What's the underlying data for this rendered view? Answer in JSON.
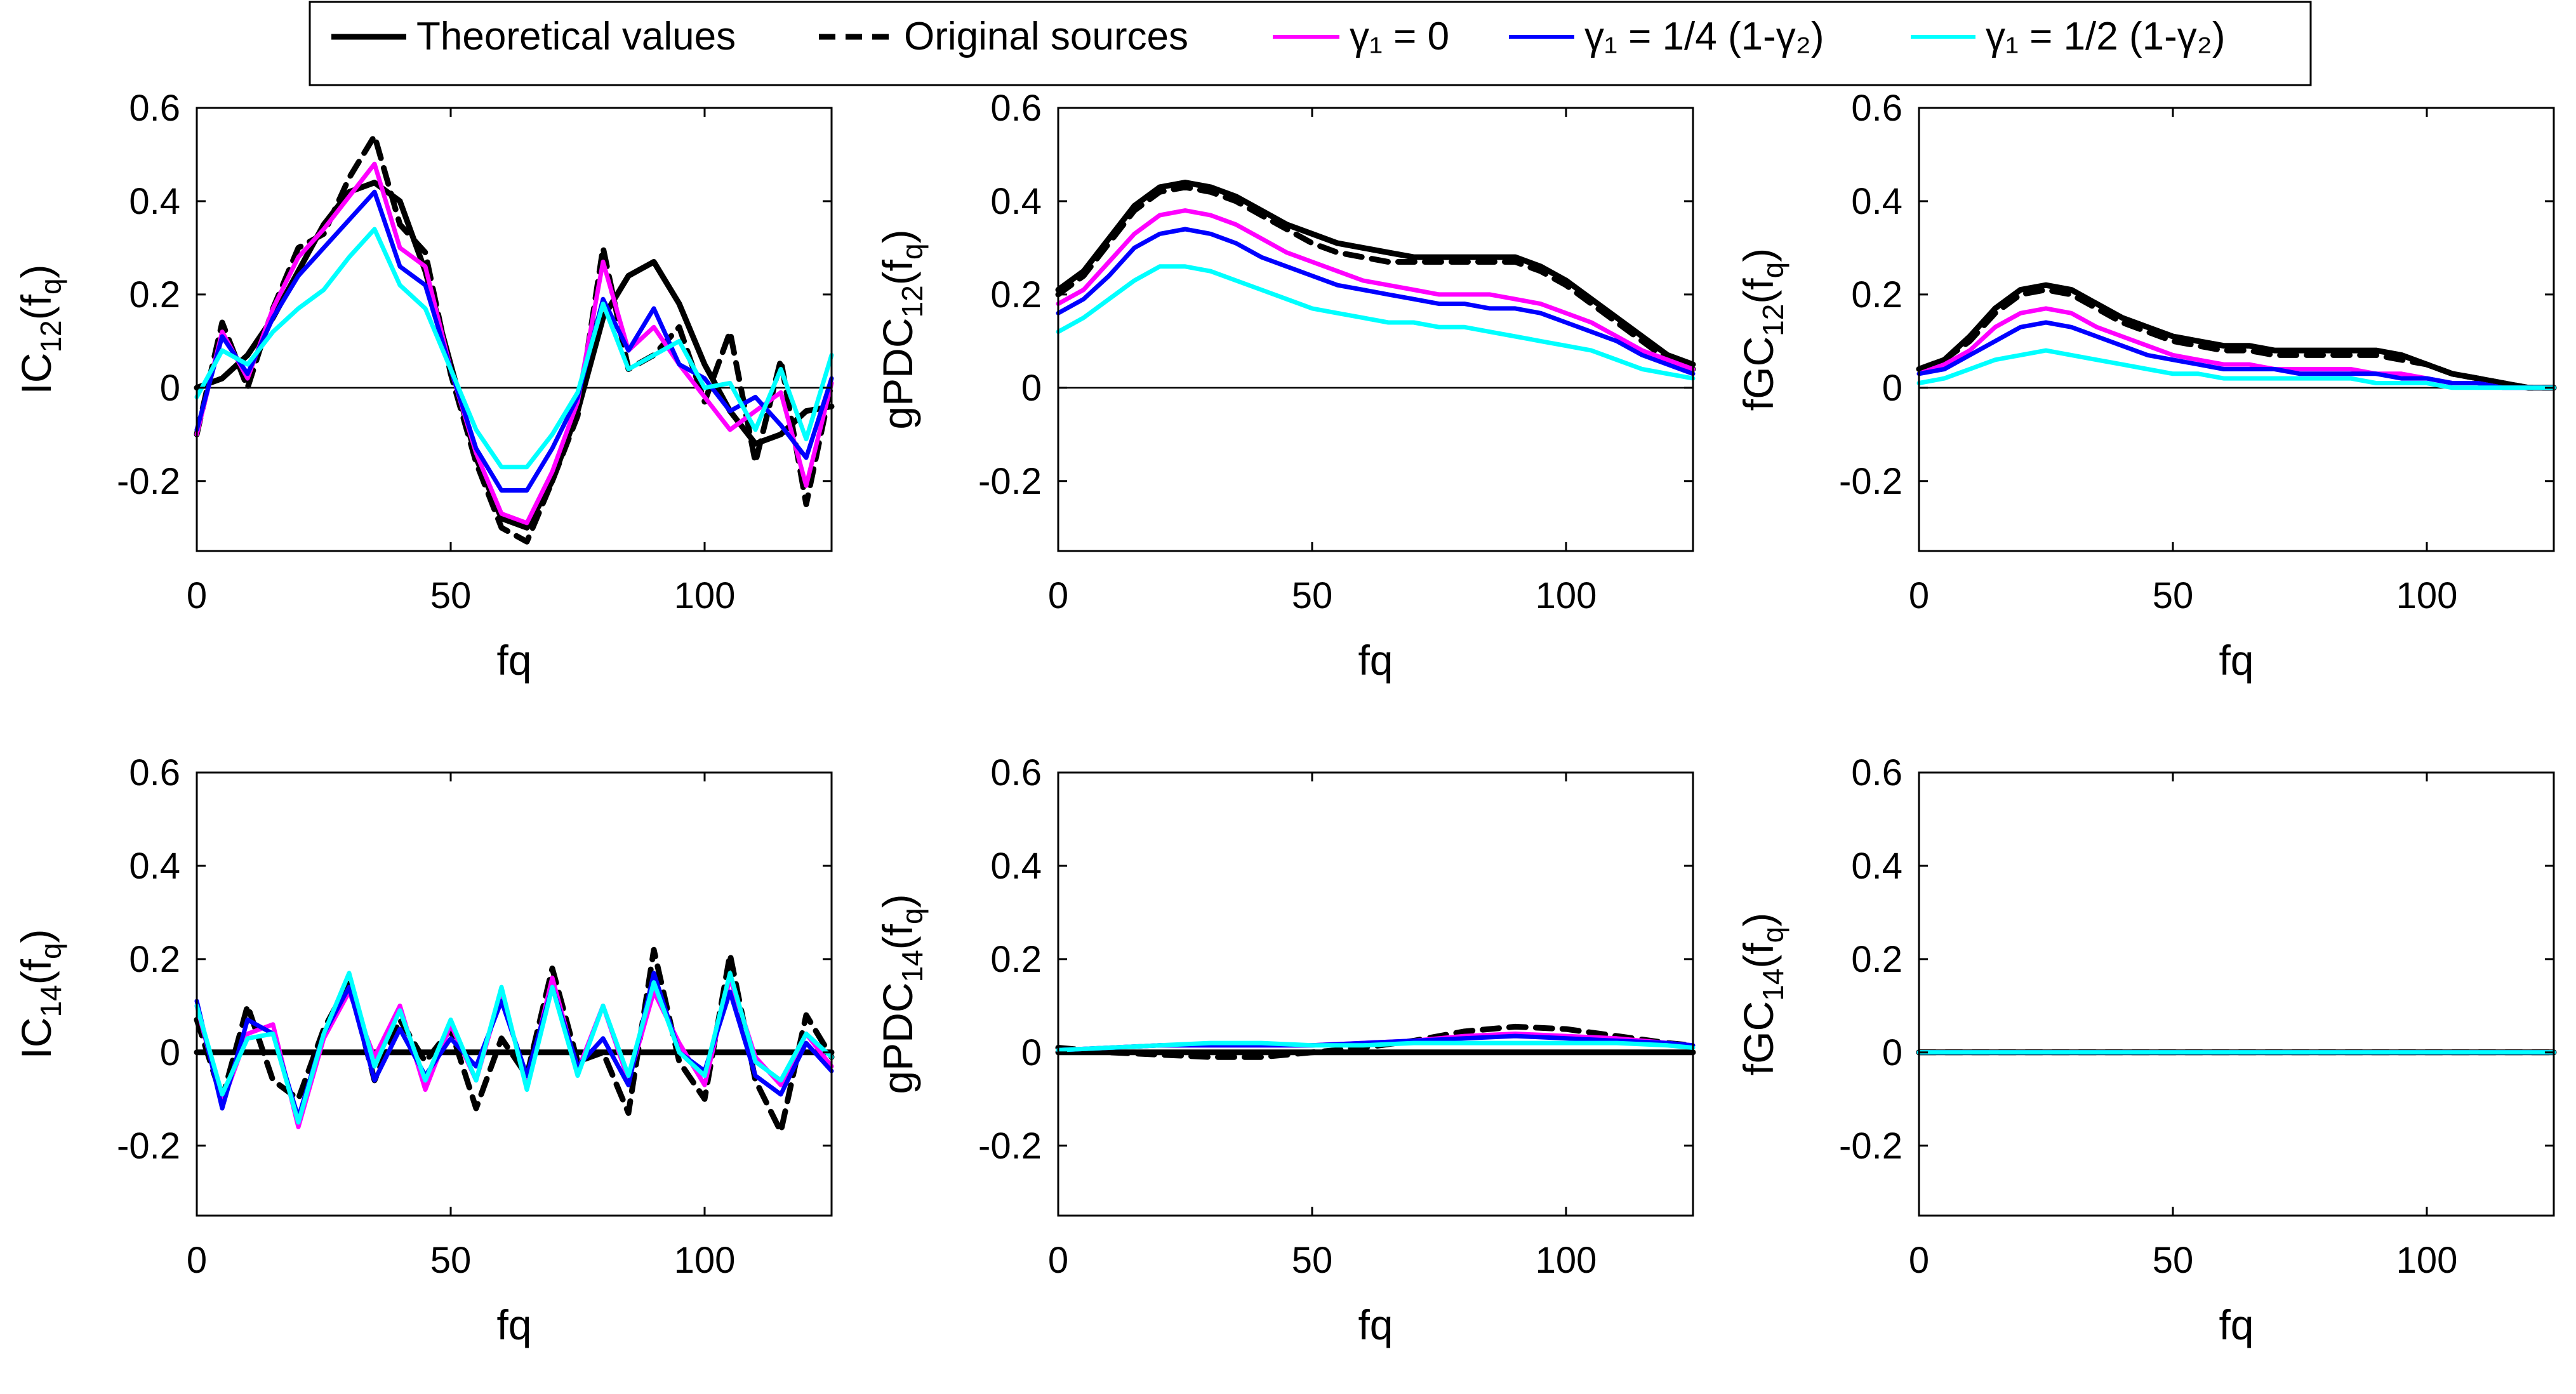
{
  "legend": {
    "entries": [
      {
        "key": "theoretical",
        "label": "Theoretical values",
        "color": "#000000",
        "dash": "solid"
      },
      {
        "key": "original",
        "label": "Original sources",
        "color": "#000000",
        "dash": "dashed"
      },
      {
        "key": "g0",
        "label": "γ₁ = 0",
        "color": "#ff00ff",
        "dash": "solid"
      },
      {
        "key": "g14",
        "label": "γ₁ = 1/4 (1-γ₂)",
        "color": "#0000ff",
        "dash": "solid"
      },
      {
        "key": "g12",
        "label": "γ₁ = 1/2 (1-γ₂)",
        "color": "#00ffff",
        "dash": "solid"
      }
    ]
  },
  "chart_data": [
    {
      "id": "ic12",
      "type": "line",
      "ylabel": "IC12(fq)",
      "xlabel": "fq",
      "xlim": [
        0,
        125
      ],
      "ylim": [
        -0.35,
        0.6
      ],
      "xticks": [
        "0",
        "50",
        "100"
      ],
      "yticks": [
        "-0.2",
        "0",
        "0.2",
        "0.4",
        "0.6"
      ],
      "x": [
        0,
        5,
        10,
        15,
        20,
        25,
        30,
        35,
        40,
        45,
        50,
        55,
        60,
        65,
        70,
        75,
        80,
        85,
        90,
        95,
        100,
        105,
        110,
        115,
        120,
        125
      ],
      "series": [
        {
          "key": "theoretical",
          "values": [
            0.0,
            0.02,
            0.07,
            0.15,
            0.25,
            0.35,
            0.42,
            0.44,
            0.4,
            0.25,
            0.05,
            -0.15,
            -0.28,
            -0.3,
            -0.2,
            -0.05,
            0.15,
            0.24,
            0.27,
            0.18,
            0.05,
            -0.05,
            -0.12,
            -0.1,
            -0.05,
            -0.04
          ]
        },
        {
          "key": "original",
          "values": [
            -0.1,
            0.14,
            0.0,
            0.17,
            0.3,
            0.33,
            0.45,
            0.54,
            0.35,
            0.29,
            0.03,
            -0.16,
            -0.3,
            -0.33,
            -0.2,
            -0.06,
            0.3,
            0.04,
            0.07,
            0.13,
            -0.03,
            0.12,
            -0.16,
            0.06,
            -0.25,
            0.01
          ]
        },
        {
          "key": "g0",
          "values": [
            -0.1,
            0.12,
            0.02,
            0.17,
            0.28,
            0.34,
            0.41,
            0.48,
            0.3,
            0.26,
            0.04,
            -0.14,
            -0.27,
            -0.29,
            -0.18,
            -0.03,
            0.27,
            0.08,
            0.13,
            0.05,
            -0.02,
            -0.09,
            -0.05,
            -0.01,
            -0.21,
            0.01
          ]
        },
        {
          "key": "g14",
          "values": [
            -0.09,
            0.11,
            0.03,
            0.15,
            0.24,
            0.3,
            0.36,
            0.42,
            0.26,
            0.22,
            0.04,
            -0.13,
            -0.22,
            -0.22,
            -0.13,
            -0.02,
            0.19,
            0.08,
            0.17,
            0.05,
            0.02,
            -0.05,
            -0.02,
            -0.08,
            -0.15,
            0.02
          ]
        },
        {
          "key": "g12",
          "values": [
            -0.02,
            0.08,
            0.05,
            0.12,
            0.17,
            0.21,
            0.28,
            0.34,
            0.22,
            0.17,
            0.04,
            -0.09,
            -0.17,
            -0.17,
            -0.1,
            -0.01,
            0.18,
            0.04,
            0.07,
            0.1,
            -0.0,
            0.01,
            -0.09,
            0.04,
            -0.11,
            0.07
          ]
        }
      ]
    },
    {
      "id": "gpdc12",
      "type": "line",
      "ylabel": "gPDC12(fq)",
      "xlabel": "fq",
      "xlim": [
        0,
        125
      ],
      "ylim": [
        -0.35,
        0.6
      ],
      "xticks": [
        "0",
        "50",
        "100"
      ],
      "yticks": [
        "-0.2",
        "0",
        "0.2",
        "0.4",
        "0.6"
      ],
      "x": [
        0,
        5,
        10,
        15,
        20,
        25,
        30,
        35,
        40,
        45,
        50,
        55,
        60,
        65,
        70,
        75,
        80,
        85,
        90,
        95,
        100,
        105,
        110,
        115,
        120,
        125
      ],
      "series": [
        {
          "key": "theoretical",
          "values": [
            0.21,
            0.25,
            0.32,
            0.39,
            0.43,
            0.44,
            0.43,
            0.41,
            0.38,
            0.35,
            0.33,
            0.31,
            0.3,
            0.29,
            0.28,
            0.28,
            0.28,
            0.28,
            0.28,
            0.26,
            0.23,
            0.19,
            0.15,
            0.11,
            0.07,
            0.05
          ]
        },
        {
          "key": "original",
          "values": [
            0.2,
            0.24,
            0.31,
            0.38,
            0.42,
            0.43,
            0.42,
            0.4,
            0.37,
            0.34,
            0.31,
            0.29,
            0.28,
            0.27,
            0.27,
            0.27,
            0.27,
            0.27,
            0.27,
            0.25,
            0.22,
            0.18,
            0.14,
            0.1,
            0.06,
            0.04
          ]
        },
        {
          "key": "g0",
          "values": [
            0.18,
            0.21,
            0.27,
            0.33,
            0.37,
            0.38,
            0.37,
            0.35,
            0.32,
            0.29,
            0.27,
            0.25,
            0.23,
            0.22,
            0.21,
            0.2,
            0.2,
            0.2,
            0.19,
            0.18,
            0.16,
            0.14,
            0.11,
            0.08,
            0.06,
            0.04
          ]
        },
        {
          "key": "g14",
          "values": [
            0.16,
            0.19,
            0.24,
            0.3,
            0.33,
            0.34,
            0.33,
            0.31,
            0.28,
            0.26,
            0.24,
            0.22,
            0.21,
            0.2,
            0.19,
            0.18,
            0.18,
            0.17,
            0.17,
            0.16,
            0.14,
            0.12,
            0.1,
            0.07,
            0.05,
            0.03
          ]
        },
        {
          "key": "g12",
          "values": [
            0.12,
            0.15,
            0.19,
            0.23,
            0.26,
            0.26,
            0.25,
            0.23,
            0.21,
            0.19,
            0.17,
            0.16,
            0.15,
            0.14,
            0.14,
            0.13,
            0.13,
            0.12,
            0.11,
            0.1,
            0.09,
            0.08,
            0.06,
            0.04,
            0.03,
            0.02
          ]
        }
      ]
    },
    {
      "id": "fgc12",
      "type": "line",
      "ylabel": "fGC12(fq)",
      "xlabel": "fq",
      "xlim": [
        0,
        125
      ],
      "ylim": [
        -0.35,
        0.6
      ],
      "xticks": [
        "0",
        "50",
        "100"
      ],
      "yticks": [
        "-0.2",
        "0",
        "0.2",
        "0.4",
        "0.6"
      ],
      "x": [
        0,
        5,
        10,
        15,
        20,
        25,
        30,
        35,
        40,
        45,
        50,
        55,
        60,
        65,
        70,
        75,
        80,
        85,
        90,
        95,
        100,
        105,
        110,
        115,
        120,
        125
      ],
      "series": [
        {
          "key": "theoretical",
          "values": [
            0.04,
            0.06,
            0.11,
            0.17,
            0.21,
            0.22,
            0.21,
            0.18,
            0.15,
            0.13,
            0.11,
            0.1,
            0.09,
            0.09,
            0.08,
            0.08,
            0.08,
            0.08,
            0.08,
            0.07,
            0.05,
            0.03,
            0.02,
            0.01,
            0.0,
            0.0
          ]
        },
        {
          "key": "original",
          "values": [
            0.04,
            0.06,
            0.1,
            0.16,
            0.2,
            0.21,
            0.2,
            0.17,
            0.14,
            0.12,
            0.1,
            0.09,
            0.08,
            0.08,
            0.07,
            0.07,
            0.07,
            0.07,
            0.07,
            0.06,
            0.05,
            0.03,
            0.02,
            0.01,
            0.0,
            0.0
          ]
        },
        {
          "key": "g0",
          "values": [
            0.03,
            0.05,
            0.08,
            0.13,
            0.16,
            0.17,
            0.16,
            0.13,
            0.11,
            0.09,
            0.07,
            0.06,
            0.05,
            0.05,
            0.04,
            0.04,
            0.04,
            0.04,
            0.03,
            0.03,
            0.02,
            0.01,
            0.01,
            0.0,
            0.0,
            0.0
          ]
        },
        {
          "key": "g14",
          "values": [
            0.03,
            0.04,
            0.07,
            0.1,
            0.13,
            0.14,
            0.13,
            0.11,
            0.09,
            0.07,
            0.06,
            0.05,
            0.04,
            0.04,
            0.04,
            0.03,
            0.03,
            0.03,
            0.03,
            0.02,
            0.02,
            0.01,
            0.01,
            0.0,
            0.0,
            0.0
          ]
        },
        {
          "key": "g12",
          "values": [
            0.01,
            0.02,
            0.04,
            0.06,
            0.07,
            0.08,
            0.07,
            0.06,
            0.05,
            0.04,
            0.03,
            0.03,
            0.02,
            0.02,
            0.02,
            0.02,
            0.02,
            0.02,
            0.01,
            0.01,
            0.01,
            0.0,
            0.0,
            0.0,
            0.0,
            0.0
          ]
        }
      ]
    },
    {
      "id": "ic14",
      "type": "line",
      "ylabel": "IC14(fq)",
      "xlabel": "fq",
      "xlim": [
        0,
        125
      ],
      "ylim": [
        -0.35,
        0.6
      ],
      "xticks": [
        "0",
        "50",
        "100"
      ],
      "yticks": [
        "-0.2",
        "0",
        "0.2",
        "0.4",
        "0.6"
      ],
      "x": [
        0,
        5,
        10,
        15,
        20,
        25,
        30,
        35,
        40,
        45,
        50,
        55,
        60,
        65,
        70,
        75,
        80,
        85,
        90,
        95,
        100,
        105,
        110,
        115,
        120,
        125
      ],
      "series": [
        {
          "key": "theoretical",
          "values": [
            0.0,
            0.0,
            0.0,
            0.0,
            0.0,
            0.0,
            0.0,
            0.0,
            0.0,
            0.0,
            0.0,
            0.0,
            0.0,
            0.0,
            0.0,
            0.0,
            0.0,
            0.0,
            0.0,
            0.0,
            0.0,
            0.0,
            0.0,
            0.0,
            0.0,
            0.0
          ]
        },
        {
          "key": "original",
          "values": [
            0.07,
            -0.1,
            0.1,
            -0.06,
            -0.1,
            0.05,
            0.15,
            -0.06,
            0.07,
            -0.02,
            0.05,
            -0.12,
            0.03,
            -0.05,
            0.18,
            -0.02,
            0.0,
            -0.13,
            0.22,
            -0.02,
            -0.1,
            0.21,
            -0.06,
            -0.17,
            0.08,
            -0.01
          ]
        },
        {
          "key": "g0",
          "values": [
            0.1,
            -0.11,
            0.04,
            0.06,
            -0.16,
            0.03,
            0.13,
            -0.01,
            0.1,
            -0.08,
            0.06,
            -0.06,
            0.13,
            -0.07,
            0.16,
            -0.04,
            0.1,
            -0.06,
            0.13,
            0.02,
            -0.07,
            0.16,
            -0.01,
            -0.07,
            0.04,
            -0.03
          ]
        },
        {
          "key": "g14",
          "values": [
            0.11,
            -0.12,
            0.07,
            0.04,
            -0.14,
            0.04,
            0.14,
            -0.06,
            0.05,
            -0.05,
            0.03,
            -0.03,
            0.11,
            -0.05,
            0.14,
            -0.03,
            0.03,
            -0.07,
            0.17,
            -0.0,
            -0.04,
            0.13,
            -0.05,
            -0.09,
            0.02,
            -0.04
          ]
        },
        {
          "key": "g12",
          "values": [
            0.1,
            -0.09,
            0.03,
            0.04,
            -0.15,
            0.04,
            0.17,
            -0.03,
            0.09,
            -0.06,
            0.07,
            -0.06,
            0.14,
            -0.08,
            0.14,
            -0.05,
            0.1,
            -0.05,
            0.15,
            0.0,
            -0.05,
            0.17,
            -0.02,
            -0.06,
            0.04,
            -0.01
          ]
        }
      ]
    },
    {
      "id": "gpdc14",
      "type": "line",
      "ylabel": "gPDC14(fq)",
      "xlabel": "fq",
      "xlim": [
        0,
        125
      ],
      "ylim": [
        -0.35,
        0.6
      ],
      "xticks": [
        "0",
        "50",
        "100"
      ],
      "yticks": [
        "-0.2",
        "0",
        "0.2",
        "0.4",
        "0.6"
      ],
      "x": [
        0,
        10,
        20,
        30,
        40,
        50,
        60,
        70,
        80,
        90,
        100,
        110,
        120,
        125
      ],
      "series": [
        {
          "key": "theoretical",
          "values": [
            0.0,
            0.0,
            0.0,
            0.0,
            0.0,
            0.0,
            0.0,
            0.0,
            0.0,
            0.0,
            0.0,
            0.0,
            0.0,
            0.0
          ]
        },
        {
          "key": "original",
          "values": [
            0.01,
            0.0,
            -0.005,
            -0.01,
            -0.01,
            0.0,
            0.01,
            0.025,
            0.045,
            0.055,
            0.05,
            0.035,
            0.02,
            0.015
          ]
        },
        {
          "key": "g0",
          "values": [
            0.005,
            0.01,
            0.015,
            0.015,
            0.015,
            0.015,
            0.02,
            0.025,
            0.035,
            0.04,
            0.035,
            0.03,
            0.02,
            0.015
          ]
        },
        {
          "key": "g14",
          "values": [
            0.005,
            0.01,
            0.015,
            0.015,
            0.015,
            0.015,
            0.02,
            0.025,
            0.03,
            0.035,
            0.03,
            0.025,
            0.02,
            0.015
          ]
        },
        {
          "key": "g12",
          "values": [
            0.005,
            0.01,
            0.015,
            0.02,
            0.02,
            0.015,
            0.015,
            0.02,
            0.02,
            0.02,
            0.02,
            0.02,
            0.015,
            0.01
          ]
        }
      ]
    },
    {
      "id": "fgc14",
      "type": "line",
      "ylabel": "fGC14(fq)",
      "xlabel": "fq",
      "xlim": [
        0,
        125
      ],
      "ylim": [
        -0.35,
        0.6
      ],
      "xticks": [
        "0",
        "50",
        "100"
      ],
      "yticks": [
        "-0.2",
        "0",
        "0.2",
        "0.4",
        "0.6"
      ],
      "x": [
        0,
        25,
        50,
        75,
        100,
        125
      ],
      "series": [
        {
          "key": "theoretical",
          "values": [
            0.0,
            0.0,
            0.0,
            0.0,
            0.0,
            0.0
          ]
        },
        {
          "key": "original",
          "values": [
            0.0,
            0.0,
            0.0,
            0.0,
            0.0,
            0.0
          ]
        },
        {
          "key": "g0",
          "values": [
            0.0,
            0.0,
            0.0,
            0.0,
            0.0,
            0.0
          ]
        },
        {
          "key": "g14",
          "values": [
            0.0,
            0.0,
            0.0,
            0.0,
            0.0,
            0.0
          ]
        },
        {
          "key": "g12",
          "values": [
            0.0,
            0.0,
            0.0,
            0.0,
            0.0,
            0.0
          ]
        }
      ]
    }
  ]
}
